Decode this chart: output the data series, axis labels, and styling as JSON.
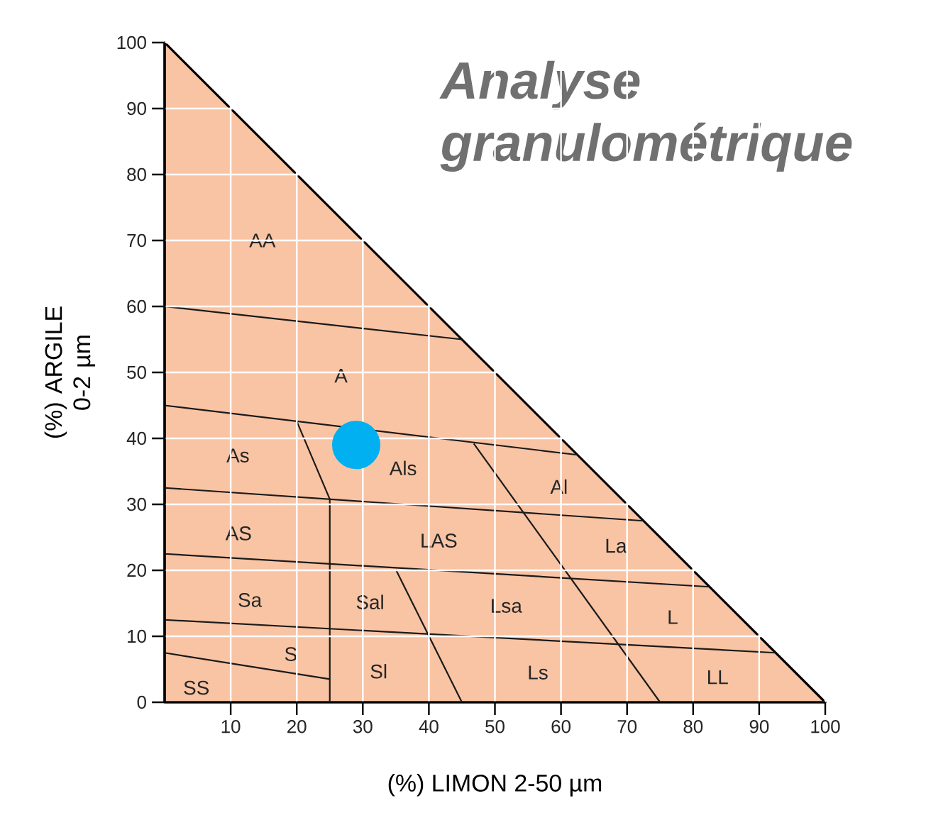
{
  "chart_data": {
    "type": "scatter",
    "title": "Analyse granulométrique",
    "xlabel": "(%) LIMON 2-50 µm",
    "ylabel": "(%) ARGILE 0-2 µm",
    "xlim": [
      0,
      100
    ],
    "ylim": [
      0,
      100
    ],
    "xticks": [
      10,
      20,
      30,
      40,
      50,
      60,
      70,
      80,
      90,
      100
    ],
    "yticks": [
      0,
      10,
      20,
      30,
      40,
      50,
      60,
      70,
      80,
      90,
      100
    ],
    "grid": true,
    "series": [
      {
        "type": "area",
        "color": "#f9c4a4",
        "x": [
          0,
          100
        ],
        "values": [
          100,
          0
        ]
      },
      {
        "type": "line",
        "color": "#1a1a1a",
        "x": [
          0,
          45
        ],
        "values": [
          60,
          55
        ]
      },
      {
        "type": "line",
        "color": "#1a1a1a",
        "x": [
          0,
          62.5
        ],
        "values": [
          45,
          37.5
        ]
      },
      {
        "type": "line",
        "color": "#1a1a1a",
        "x": [
          0,
          72.5
        ],
        "values": [
          32.5,
          27.5
        ]
      },
      {
        "type": "line",
        "color": "#1a1a1a",
        "x": [
          0,
          82.5
        ],
        "values": [
          22.5,
          17.5
        ]
      },
      {
        "type": "line",
        "color": "#1a1a1a",
        "x": [
          0,
          92.5
        ],
        "values": [
          12.5,
          7.5
        ]
      },
      {
        "type": "line",
        "color": "#1a1a1a",
        "x": [
          0,
          25
        ],
        "values": [
          7.5,
          3.5
        ]
      },
      {
        "type": "line",
        "color": "#1a1a1a",
        "x": [
          20,
          25,
          25
        ],
        "values": [
          42.6,
          30.8,
          0
        ]
      },
      {
        "type": "line",
        "color": "#1a1a1a",
        "x": [
          46.8,
          75
        ],
        "values": [
          39.2,
          0
        ]
      },
      {
        "type": "line",
        "color": "#1a1a1a",
        "x": [
          35,
          45
        ],
        "values": [
          20.1,
          0
        ]
      },
      {
        "color": "#00b0f0",
        "marker": "circle",
        "x": [
          29
        ],
        "values": [
          39
        ]
      }
    ],
    "annotations": [
      "AA",
      "A",
      "As",
      "Als",
      "Al",
      "AS",
      "LAS",
      "La",
      "Sa",
      "Sal",
      "Lsa",
      "L",
      "S",
      "Sl",
      "Ls",
      "LL",
      "SS"
    ]
  }
}
